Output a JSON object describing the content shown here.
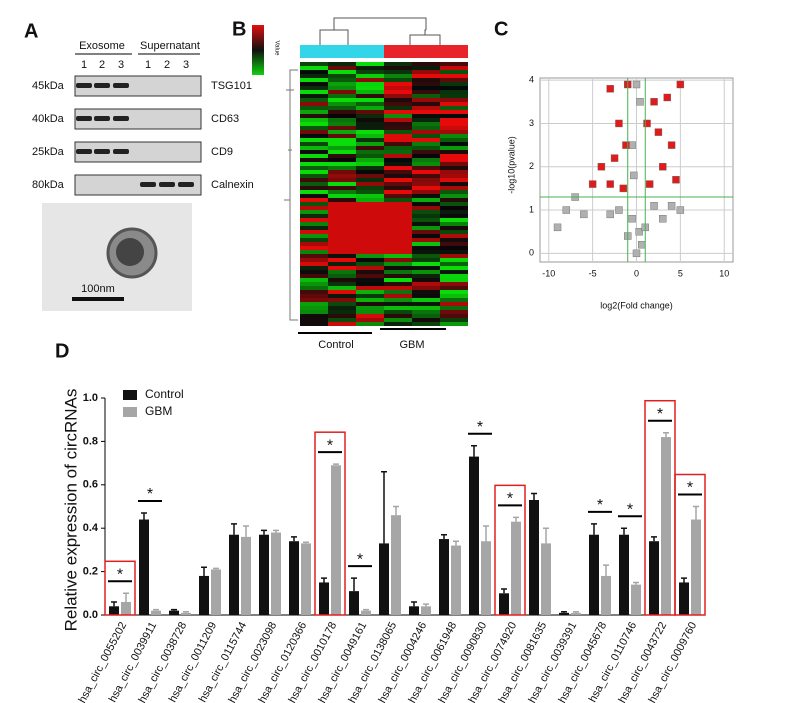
{
  "panel_labels": [
    "A",
    "B",
    "C",
    "D"
  ],
  "western_blot": {
    "groups": [
      "Exosome",
      "Supernatant"
    ],
    "lanes": [
      "1",
      "2",
      "3",
      "1",
      "2",
      "3"
    ],
    "rows": [
      {
        "size": "45kDa",
        "marker": "TSG101",
        "bands": [
          true,
          true,
          true,
          false,
          false,
          false
        ]
      },
      {
        "size": "40kDa",
        "marker": "CD63",
        "bands": [
          true,
          true,
          true,
          false,
          false,
          false
        ]
      },
      {
        "size": "25kDa",
        "marker": "CD9",
        "bands": [
          true,
          true,
          true,
          false,
          false,
          false
        ]
      },
      {
        "size": "80kDa",
        "marker": "Calnexin",
        "bands": [
          false,
          false,
          false,
          true,
          true,
          true
        ]
      }
    ],
    "scale_bar": "100nm"
  },
  "heatmap": {
    "legend_title": "Value",
    "groups": [
      "Control",
      "GBM"
    ],
    "group_colors": [
      "#33d6e8",
      "#e8232a"
    ]
  },
  "chart_data": [
    {
      "type": "scatter",
      "xlabel": "log2(Fold change)",
      "ylabel": "-log10(pvalue)",
      "xlim": [
        -11,
        11
      ],
      "ylim": [
        -0.2,
        4.05
      ],
      "xticks": [
        -10,
        -5,
        0,
        5,
        10
      ],
      "yticks": [
        0,
        1,
        2,
        3,
        4
      ],
      "grid": true,
      "vlines": [
        -1,
        1
      ],
      "hline": 1.3,
      "threshold_color": "#4caf50",
      "series": [
        {
          "color": "#b0b0b0",
          "marker": "square",
          "x": [
            0,
            0.3,
            -0.5,
            -2,
            2,
            -6,
            -8,
            -9,
            -7,
            4,
            5,
            -0.5,
            0.4,
            0,
            -0.3,
            0.6,
            -1,
            1,
            -3,
            3
          ],
          "values": [
            0,
            0.5,
            0.8,
            1.0,
            1.1,
            0.9,
            1.0,
            0.6,
            1.3,
            1.1,
            1.0,
            2.5,
            3.5,
            3.9,
            1.8,
            0.2,
            0.4,
            0.6,
            0.9,
            0.8
          ]
        },
        {
          "color": "#e01b1b",
          "marker": "square",
          "x": [
            -1.5,
            -3,
            -5,
            -1.2,
            -2,
            -3,
            -1,
            1.5,
            3,
            4,
            5,
            2,
            1.2,
            4.5,
            -2.5,
            2.5,
            -4,
            3.5
          ],
          "values": [
            1.5,
            1.6,
            1.6,
            2.5,
            3.0,
            3.8,
            3.9,
            1.6,
            2.0,
            2.5,
            3.9,
            3.5,
            3.0,
            1.7,
            2.2,
            2.8,
            2.0,
            3.6
          ]
        }
      ]
    },
    {
      "type": "bar",
      "ylabel": "Relative expression of circRNAs",
      "categories": [
        "hsa_circ_0055202",
        "hsa_circ_0039911",
        "hsa_circ_0038728",
        "hsa_circ_0011209",
        "hsa_circ_0115744",
        "hsa_circ_0023098",
        "hsa_circ_0120366",
        "hsa_circ_0010178",
        "hsa_circ_0049161",
        "hsa_circ_0138065",
        "hsa_circ_0004246",
        "hsa_circ_0061948",
        "hsa_circ_0090830",
        "hsa_circ_0074920",
        "hsa_circ_0081635",
        "hsa_circ_0039391",
        "hsa_circ_0045678",
        "hsa_circ_0110746",
        "hsa_circ_0043722",
        "hsa_circ_0009760"
      ],
      "series": [
        {
          "name": "Control",
          "color": "#111111",
          "values": [
            0.04,
            0.44,
            0.02,
            0.18,
            0.37,
            0.37,
            0.34,
            0.15,
            0.11,
            0.33,
            0.04,
            0.35,
            0.73,
            0.1,
            0.53,
            0.01,
            0.37,
            0.37,
            0.34,
            0.15
          ],
          "errors": [
            0.02,
            0.03,
            0.005,
            0.04,
            0.05,
            0.02,
            0.02,
            0.02,
            0.06,
            0.33,
            0.02,
            0.02,
            0.05,
            0.02,
            0.03,
            0.005,
            0.05,
            0.03,
            0.02,
            0.02
          ]
        },
        {
          "name": "GBM",
          "color": "#a6a6a6",
          "values": [
            0.06,
            0.02,
            0.01,
            0.21,
            0.36,
            0.38,
            0.33,
            0.69,
            0.02,
            0.46,
            0.04,
            0.32,
            0.34,
            0.43,
            0.33,
            0.01,
            0.18,
            0.14,
            0.82,
            0.44
          ],
          "errors": [
            0.04,
            0.005,
            0.005,
            0.005,
            0.05,
            0.01,
            0.005,
            0.005,
            0.005,
            0.04,
            0.01,
            0.02,
            0.07,
            0.02,
            0.07,
            0.005,
            0.05,
            0.01,
            0.02,
            0.06
          ]
        }
      ],
      "significance": [
        "*",
        "*",
        null,
        null,
        null,
        null,
        null,
        "*",
        "*",
        null,
        null,
        null,
        "*",
        "*",
        null,
        null,
        "*",
        "*",
        "*",
        "*"
      ],
      "highlight": [
        true,
        false,
        false,
        false,
        false,
        false,
        false,
        true,
        false,
        false,
        false,
        false,
        false,
        true,
        false,
        false,
        false,
        false,
        true,
        true
      ],
      "highlight_color": "#e02020",
      "ylim": [
        0,
        1.0
      ],
      "yticks": [
        {
          "value": 0,
          "label": "0.0"
        },
        {
          "value": 0.2,
          "label": "0.2"
        },
        {
          "value": 0.4,
          "label": "0.4"
        },
        {
          "value": 0.6,
          "label": "0.6"
        },
        {
          "value": 0.8,
          "label": "0.8"
        },
        {
          "value": 1.0,
          "label": "1.0"
        }
      ]
    }
  ]
}
